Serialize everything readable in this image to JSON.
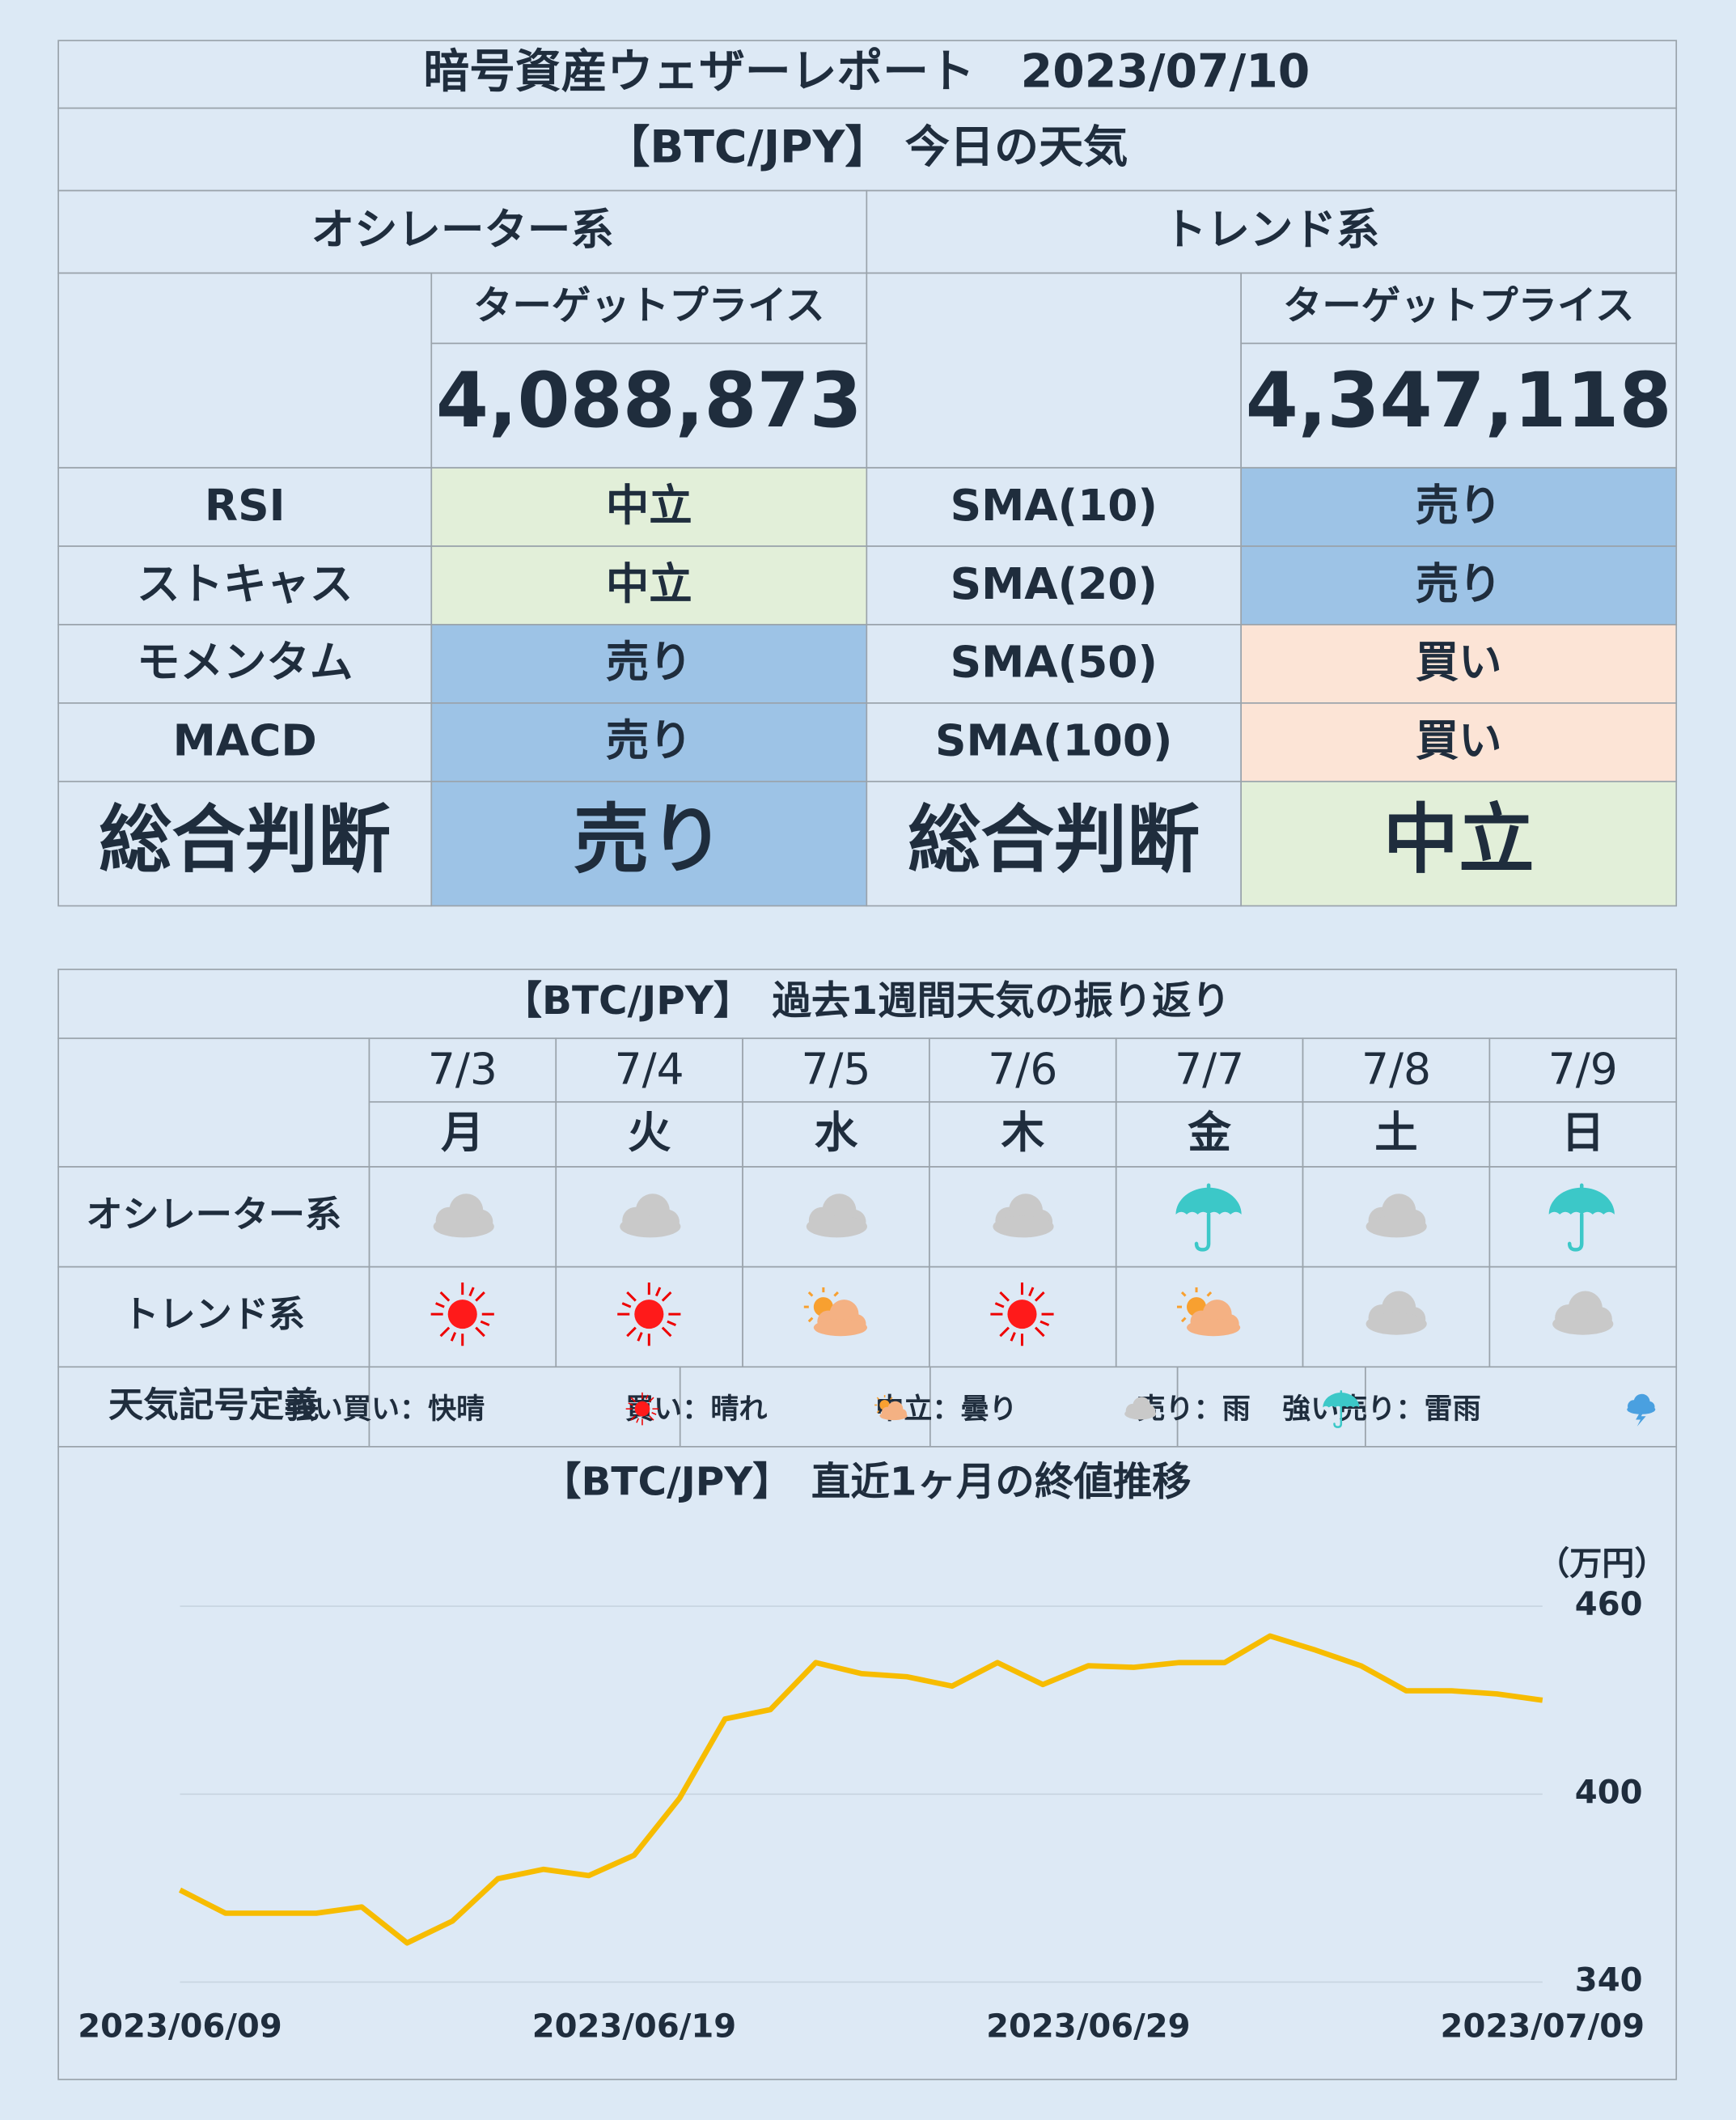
{
  "header": {
    "title": "暗号資産ウェザーレポート　2023/07/10",
    "subtitle": "【BTC/JPY】 今日の天気"
  },
  "signal_colors": {
    "中立": "#e2efd9",
    "売り": "#9dc3e6",
    "買い": "#fce4d6"
  },
  "oscillator": {
    "heading": "オシレーター系",
    "target_label": "ターゲットプライス",
    "target_price": "4,088,873",
    "rows": [
      {
        "name": "RSI",
        "signal": "中立"
      },
      {
        "name": "ストキャス",
        "signal": "中立"
      },
      {
        "name": "モメンタム",
        "signal": "売り"
      },
      {
        "name": "MACD",
        "signal": "売り"
      }
    ],
    "overall_label": "総合判断",
    "overall": "売り"
  },
  "trend": {
    "heading": "トレンド系",
    "target_label": "ターゲットプライス",
    "target_price": "4,347,118",
    "rows": [
      {
        "name": "SMA(10)",
        "signal": "売り"
      },
      {
        "name": "SMA(20)",
        "signal": "売り"
      },
      {
        "name": "SMA(50)",
        "signal": "買い"
      },
      {
        "name": "SMA(100)",
        "signal": "買い"
      }
    ],
    "overall_label": "総合判断",
    "overall": "中立"
  },
  "week": {
    "title": "【BTC/JPY】　過去1週間天気の振り返り",
    "dates": [
      "7/3",
      "7/4",
      "7/5",
      "7/6",
      "7/7",
      "7/8",
      "7/9"
    ],
    "weekdays": [
      "月",
      "火",
      "水",
      "木",
      "金",
      "土",
      "日"
    ],
    "row_labels": [
      "オシレーター系",
      "トレンド系"
    ],
    "legend_label": "天気記号定義",
    "legend": [
      "強い買い：快晴",
      "買い：晴れ",
      "中立：曇り",
      "売り：雨",
      "強い売り：雷雨"
    ]
  },
  "chart_data": {
    "type": "line",
    "title": "【BTC/JPY】　直近1ヶ月の終値推移",
    "unit_label": "（万円）",
    "categories": [
      "2023/06/09",
      null,
      null,
      null,
      null,
      null,
      null,
      null,
      null,
      null,
      "2023/06/19",
      null,
      null,
      null,
      null,
      null,
      null,
      null,
      null,
      null,
      "2023/06/29",
      null,
      null,
      null,
      null,
      null,
      null,
      null,
      null,
      null,
      "2023/07/09"
    ],
    "values": [
      369.4,
      362,
      362,
      362,
      364,
      352.5,
      359.5,
      373,
      376,
      374,
      380.5,
      398.7,
      424,
      427,
      442,
      438.5,
      437.5,
      434.5,
      442,
      435,
      441,
      440.5,
      442,
      442,
      450.5,
      446,
      441,
      433,
      433,
      432,
      430
    ],
    "color": "#f7bc00",
    "ylim": [
      340,
      460
    ],
    "yticks": [
      340,
      400,
      460
    ],
    "grid": true
  }
}
